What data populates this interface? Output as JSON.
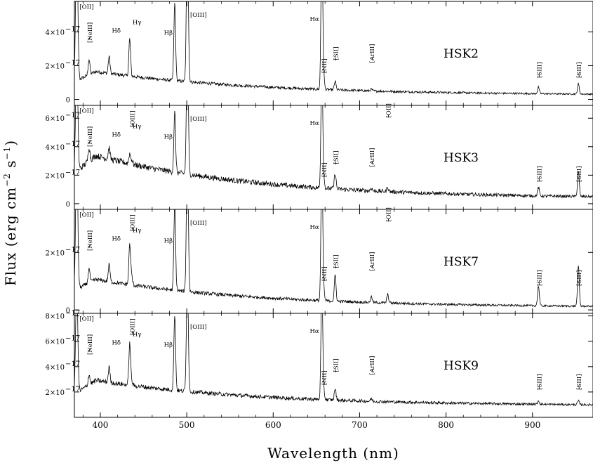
{
  "chart_data": {
    "type": "line",
    "xlabel": "Wavelength (nm)",
    "ylabel": "Flux (erg cm",
    "ylabel_sup1": "−2",
    "ylabel_mid": " s",
    "ylabel_sup2": "−1",
    "ylabel_end": ")",
    "xlim": [
      370,
      970
    ],
    "x_ticks": [
      400,
      500,
      600,
      700,
      800,
      900
    ],
    "x_tick_labels": [
      "400",
      "500",
      "600",
      "700",
      "800",
      "900"
    ],
    "panels": [
      {
        "name": "HSK2",
        "ylim": [
          -3.5e-18,
          5.8e-17
        ],
        "y_ticks": [
          0,
          2e-17,
          4e-17
        ],
        "y_tick_labels": [
          "0",
          "2×10",
          "4×10"
        ],
        "continuum_blue": 1.85e-17,
        "continuum_red": 2.5e-18,
        "lines": [
          {
            "label": "[OII]",
            "x": 372.7,
            "peak": 9e-17,
            "width": 1.2
          },
          {
            "label": "[NeIII]",
            "x": 386.9,
            "peak": 9e-18,
            "width": 1.0
          },
          {
            "label": "Hδ",
            "x": 410.2,
            "peak": 1e-17,
            "width": 1.0
          },
          {
            "label": "Hγ",
            "x": 434.0,
            "peak": 2.2e-17,
            "width": 1.0
          },
          {
            "label": "Hβ",
            "x": 486.1,
            "peak": 4.6e-17,
            "width": 1.0
          },
          {
            "label": "[OIII]",
            "x": 500.7,
            "peak": 9e-17,
            "width": 1.1
          },
          {
            "label": "Hα",
            "x": 656.3,
            "peak": 9e-17,
            "width": 1.0
          },
          {
            "label": "[NII]",
            "x": 658.4,
            "peak": 6e-18,
            "width": 1.0
          },
          {
            "label": "[SII]",
            "x": 671.7,
            "peak": 5e-18,
            "width": 1.0
          },
          {
            "label": "[ArIII]",
            "x": 713.6,
            "peak": 1e-18,
            "width": 1.0
          },
          {
            "label": "[SIII]",
            "x": 906.9,
            "peak": 4e-18,
            "width": 1.0
          },
          {
            "label": "[SIII]",
            "x": 953.1,
            "peak": 6e-18,
            "width": 1.0
          }
        ]
      },
      {
        "name": "HSK3",
        "ylim": [
          -4e-18,
          6.9e-17
        ],
        "y_ticks": [
          0,
          2e-17,
          4e-17,
          6e-17
        ],
        "y_tick_labels": [
          "0",
          "2×10",
          "4×10",
          "6×10"
        ],
        "continuum_blue": 3.8e-17,
        "continuum_red": 3.5e-18,
        "lines": [
          {
            "label": "[OII]",
            "x": 372.7,
            "peak": 9e-17,
            "width": 1.2
          },
          {
            "label": "[NeIII]",
            "x": 386.9,
            "peak": 1e-17,
            "width": 1.0
          },
          {
            "label": "Hδ",
            "x": 410.2,
            "peak": 8e-18,
            "width": 1.0
          },
          {
            "label": "Hγ",
            "x": 434.0,
            "peak": 7e-18,
            "width": 1.0
          },
          {
            "label": "[OIII]",
            "x": 436.3,
            "peak": 3e-18,
            "width": 1.0
          },
          {
            "label": "Hβ",
            "x": 486.1,
            "peak": 4.2e-17,
            "width": 1.0
          },
          {
            "label": "[OIII]",
            "x": 500.7,
            "peak": 9e-17,
            "width": 1.1
          },
          {
            "label": "Hα",
            "x": 656.3,
            "peak": 9e-17,
            "width": 1.0
          },
          {
            "label": "[NII]",
            "x": 658.4,
            "peak": 5e-18,
            "width": 1.0
          },
          {
            "label": "[SII]",
            "x": 671.7,
            "peak": 1.1e-17,
            "width": 1.0
          },
          {
            "label": "[ArIII]",
            "x": 713.6,
            "peak": 2e-18,
            "width": 1.0
          },
          {
            "label": "[OII]",
            "x": 732.5,
            "peak": 3e-18,
            "width": 1.0
          },
          {
            "label": "[SIII]",
            "x": 906.9,
            "peak": 6e-18,
            "width": 1.0
          },
          {
            "label": "[SIII]",
            "x": 953.1,
            "peak": 1.8e-17,
            "width": 1.0
          }
        ]
      },
      {
        "name": "HSK7",
        "ylim": [
          -1.2e-18,
          3.5e-17
        ],
        "y_ticks": [
          0,
          2e-17
        ],
        "y_tick_labels": [
          "0",
          "2×10"
        ],
        "continuum_blue": 1.2e-17,
        "continuum_red": 8e-19,
        "lines": [
          {
            "label": "[OII]",
            "x": 372.7,
            "peak": 5e-17,
            "width": 1.2
          },
          {
            "label": "[NeIII]",
            "x": 386.9,
            "peak": 5e-18,
            "width": 1.0
          },
          {
            "label": "Hδ",
            "x": 410.2,
            "peak": 6e-18,
            "width": 1.0
          },
          {
            "label": "Hγ",
            "x": 434.0,
            "peak": 1.4e-17,
            "width": 1.0
          },
          {
            "label": "[OIII]",
            "x": 436.3,
            "peak": 3e-18,
            "width": 1.0
          },
          {
            "label": "Hβ",
            "x": 486.1,
            "peak": 3e-17,
            "width": 1.0
          },
          {
            "label": "[OIII]",
            "x": 500.7,
            "peak": 5e-17,
            "width": 1.1
          },
          {
            "label": "Hα",
            "x": 656.3,
            "peak": 5e-17,
            "width": 1.0
          },
          {
            "label": "[NII]",
            "x": 658.4,
            "peak": 3e-18,
            "width": 1.0
          },
          {
            "label": "[SII]",
            "x": 671.7,
            "peak": 9e-18,
            "width": 1.0
          },
          {
            "label": "[ArIII]",
            "x": 713.6,
            "peak": 2e-18,
            "width": 1.0
          },
          {
            "label": "[OII]",
            "x": 732.5,
            "peak": 3e-18,
            "width": 1.0
          },
          {
            "label": "[SIII]",
            "x": 906.9,
            "peak": 7e-18,
            "width": 1.0
          },
          {
            "label": "[SIII]",
            "x": 953.1,
            "peak": 1.4e-17,
            "width": 1.0
          }
        ]
      },
      {
        "name": "HSK9",
        "ylim": [
          0,
          8.2e-17
        ],
        "y_ticks": [
          2e-17,
          4e-17,
          6e-17,
          8e-17
        ],
        "y_tick_labels": [
          "2×10",
          "4×10",
          "6×10",
          "8×10"
        ],
        "continuum_blue": 3.2e-17,
        "continuum_red": 9e-18,
        "lines": [
          {
            "label": "[OII]",
            "x": 372.7,
            "peak": 9e-17,
            "width": 1.2
          },
          {
            "label": "[NeIII]",
            "x": 386.9,
            "peak": 8e-18,
            "width": 1.0
          },
          {
            "label": "Hδ",
            "x": 410.2,
            "peak": 1.2e-17,
            "width": 1.0
          },
          {
            "label": "Hγ",
            "x": 434.0,
            "peak": 3.3e-17,
            "width": 1.0
          },
          {
            "label": "[OIII]",
            "x": 436.3,
            "peak": 3e-18,
            "width": 1.0
          },
          {
            "label": "Hβ",
            "x": 486.1,
            "peak": 6e-17,
            "width": 1.0
          },
          {
            "label": "[OIII]",
            "x": 500.7,
            "peak": 9e-17,
            "width": 1.1
          },
          {
            "label": "Hα",
            "x": 656.3,
            "peak": 9e-17,
            "width": 1.0
          },
          {
            "label": "[NII]",
            "x": 658.4,
            "peak": 6e-18,
            "width": 1.0
          },
          {
            "label": "[SII]",
            "x": 671.7,
            "peak": 9e-18,
            "width": 1.0
          },
          {
            "label": "[ArIII]",
            "x": 713.6,
            "peak": 2e-18,
            "width": 1.0
          },
          {
            "label": "[SIII]",
            "x": 906.9,
            "peak": 3e-18,
            "width": 1.0
          },
          {
            "label": "[SIII]",
            "x": 953.1,
            "peak": 3e-18,
            "width": 1.0
          }
        ]
      }
    ]
  }
}
